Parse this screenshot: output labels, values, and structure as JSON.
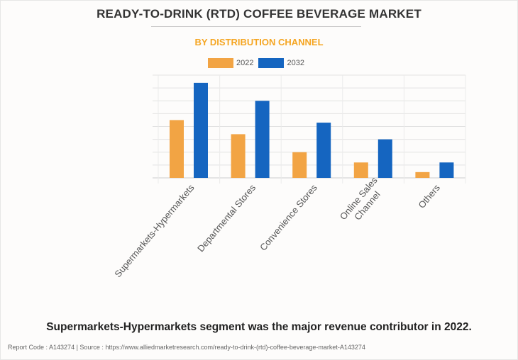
{
  "header": {
    "title": "READY-TO-DRINK (RTD) COFFEE BEVERAGE MARKET",
    "subtitle": "BY DISTRIBUTION CHANNEL"
  },
  "colors": {
    "series_2022": "#f2a444",
    "series_2032": "#1565c0",
    "subtitle": "#f5a623",
    "grid": "#e2e2e2"
  },
  "chart_data": {
    "type": "bar",
    "title": "READY-TO-DRINK (RTD) COFFEE BEVERAGE MARKET",
    "subtitle": "BY DISTRIBUTION CHANNEL",
    "xlabel": "",
    "ylabel": "",
    "y_axis_labels_shown": false,
    "ylim": [
      0,
      8
    ],
    "gridlines": 8,
    "grid": true,
    "legend_position": "top-center",
    "categories": [
      "Supermarkets-Hypermarkets",
      "Departmental Stores",
      "Convenience Stores",
      "Online Sales Channel",
      "Others"
    ],
    "category_labels": [
      [
        "Supermarkets-Hypermarkets"
      ],
      [
        "Departmental Stores"
      ],
      [
        "Convenience Stores"
      ],
      [
        "Online Sales",
        "Channel"
      ],
      [
        "Others"
      ]
    ],
    "series": [
      {
        "name": "2022",
        "values": [
          4.5,
          3.4,
          2.0,
          1.2,
          0.45
        ]
      },
      {
        "name": "2032",
        "values": [
          7.4,
          6.0,
          4.3,
          3.0,
          1.2
        ]
      }
    ]
  },
  "legend": [
    {
      "label": "2022"
    },
    {
      "label": "2032"
    }
  ],
  "insight": "Supermarkets-Hypermarkets segment was the major revenue contributor in 2022.",
  "footer": "Report Code : A143274  |  Source : https://www.alliedmarketresearch.com/ready-to-drink-(rtd)-coffee-beverage-market-A143274"
}
